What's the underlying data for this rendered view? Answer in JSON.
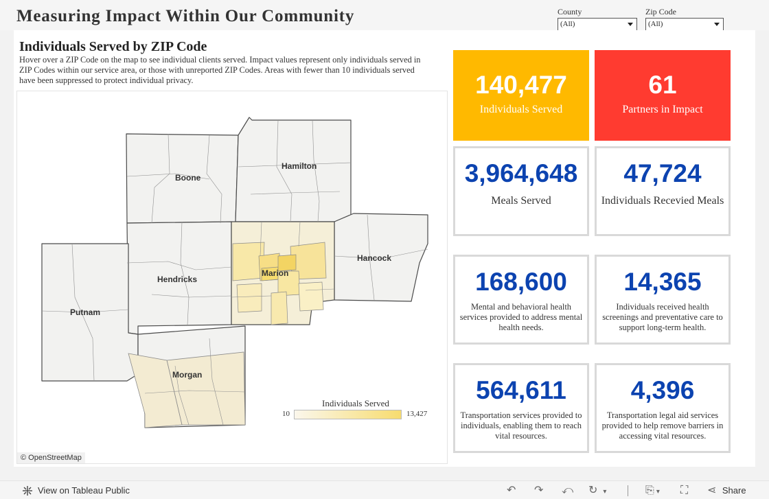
{
  "dashboard": {
    "title": "Measuring Impact Within Our Community"
  },
  "filters": [
    {
      "label": "County",
      "value": "(All)"
    },
    {
      "label": "Zip Code",
      "value": "(All)"
    }
  ],
  "map": {
    "title": "Individuals Served by ZIP Code",
    "description": "Hover over a ZIP Code on the map to see individual clients served. Impact values represent only individuals served in ZIP Codes within our service area, or those with unreported ZIP Codes. Areas with fewer than 10 individuals served have been suppressed to protect individual privacy.",
    "counties": [
      "Boone",
      "Hamilton",
      "Hancock",
      "Hendricks",
      "Marion",
      "Putnam",
      "Morgan"
    ],
    "credit": "© OpenStreetMap",
    "legend": {
      "title": "Individuals Served",
      "min": "10",
      "max": "13,427"
    },
    "colors": {
      "low": "#fbf7ec",
      "high": "#f7dc6f"
    }
  },
  "kpis": [
    {
      "value": "140,477",
      "label": "Individuals Served",
      "color": "#ffb900"
    },
    {
      "value": "61",
      "label": "Partners in Impact",
      "color": "#ff3b30"
    },
    {
      "value": "3,964,648",
      "label": "Meals Served"
    },
    {
      "value": "47,724",
      "label": "Individuals Recevied Meals"
    },
    {
      "value": "168,600",
      "label": "Mental and behavioral health services provided to address mental health needs."
    },
    {
      "value": "14,365",
      "label": "Individuals received health screenings and preventative care to support long-term health."
    },
    {
      "value": "564,611",
      "label": "Transportation services provided to individuals, enabling them to reach vital resources."
    },
    {
      "value": "4,396",
      "label": "Transportation legal aid services provided to help remove barriers in accessing vital resources."
    }
  ],
  "toolbar": {
    "view_label": "View on Tableau Public",
    "share_label": "Share",
    "icons": [
      "tableau-logo-icon",
      "undo-icon",
      "redo-icon",
      "revert-icon",
      "refresh-icon",
      "download-icon",
      "fullscreen-icon",
      "share-icon"
    ]
  }
}
